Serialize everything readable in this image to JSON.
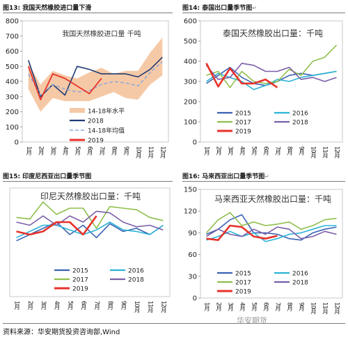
{
  "figures": [
    {
      "label": "图13:",
      "title": "我国天然橡胶进口量下滑"
    },
    {
      "label": "图14:",
      "title": "泰国出口量季节图"
    },
    {
      "label": "图15:",
      "title": "印度尼西亚出口量季节图"
    },
    {
      "label": "图16:",
      "title": "马来西亚出口量季节图"
    }
  ],
  "return_mark": "↵",
  "source": "资料来源：华安期货投资咨询部,Wind",
  "watermark": "华安期货",
  "colors": {
    "band": "#f6c9a6",
    "c2015": "#3a62b2",
    "c2016": "#2ab3d6",
    "c2017": "#8fbf4d",
    "c2018": "#7a5ea8",
    "c2019": "#e8322a",
    "c2018dark": "#1f3b73",
    "avg": "#8aa8d6"
  },
  "chart_data": [
    {
      "type": "line",
      "title": "我国天然橡胶进口量   千吨",
      "categories": [
        "1月",
        "2月",
        "3月",
        "4月",
        "5月",
        "6月",
        "7月",
        "8月",
        "9月",
        "10月",
        "11月",
        "12月"
      ],
      "ylim": [
        0,
        800
      ],
      "yticks": [
        0,
        100,
        200,
        300,
        400,
        500,
        600,
        700,
        800
      ],
      "band": {
        "name": "14-18年水平",
        "min": [
          350,
          200,
          290,
          270,
          270,
          270,
          300,
          330,
          290,
          280,
          380,
          440
        ],
        "max": [
          520,
          380,
          470,
          440,
          420,
          460,
          490,
          450,
          470,
          470,
          590,
          690
        ]
      },
      "series": [
        {
          "name": "2018",
          "values": [
            540,
            300,
            380,
            310,
            500,
            480,
            450,
            450,
            450,
            430,
            480,
            560
          ]
        },
        {
          "name": "14-18年均值",
          "values": [
            450,
            310,
            380,
            350,
            330,
            340,
            380,
            400,
            390,
            370,
            460,
            530
          ]
        },
        {
          "name": "2019",
          "values": [
            500,
            280,
            450,
            420,
            370,
            320,
            420,
            null,
            null,
            null,
            null,
            null
          ]
        }
      ],
      "legend_position": "bottom-center"
    },
    {
      "type": "line",
      "title": "泰国天然橡胶出口量：千吨",
      "categories": [
        "1月",
        "2月",
        "3月",
        "4月",
        "5月",
        "6月",
        "7月",
        "8月",
        "9月",
        "10月",
        "11月",
        "12月"
      ],
      "ylim": [
        0,
        600
      ],
      "yticks": [
        0,
        100,
        200,
        300,
        400,
        500,
        600
      ],
      "series": [
        {
          "name": "2015",
          "values": [
            290,
            330,
            370,
            320,
            290,
            280,
            300,
            330,
            340,
            330,
            340,
            350
          ]
        },
        {
          "name": "2016",
          "values": [
            300,
            340,
            320,
            300,
            260,
            280,
            310,
            300,
            320,
            330,
            340,
            350
          ]
        },
        {
          "name": "2017",
          "values": [
            330,
            350,
            270,
            350,
            300,
            290,
            300,
            360,
            330,
            400,
            420,
            480
          ]
        },
        {
          "name": "2018",
          "values": [
            380,
            310,
            320,
            390,
            380,
            350,
            350,
            370,
            310,
            320,
            300,
            320
          ]
        },
        {
          "name": "2019",
          "values": [
            390,
            275,
            365,
            290,
            290,
            310,
            270,
            null,
            null,
            null,
            null,
            null
          ]
        }
      ],
      "legend_position": "bottom"
    },
    {
      "type": "line",
      "title": "印尼天然橡胶出口量：千吨",
      "categories": [
        "1月",
        "2月",
        "3月",
        "4月",
        "5月",
        "6月",
        "7月",
        "8月",
        "9月",
        "10月",
        "11月",
        "12月"
      ],
      "ylim": [
        0,
        350
      ],
      "yticks": [],
      "series": [
        {
          "name": "2015",
          "values": [
            180,
            200,
            220,
            240,
            200,
            230,
            190,
            235,
            210,
            220,
            200,
            230
          ]
        },
        {
          "name": "2016",
          "values": [
            190,
            210,
            230,
            230,
            215,
            200,
            215,
            240,
            215,
            210,
            200,
            230
          ]
        },
        {
          "name": "2017",
          "values": [
            255,
            250,
            305,
            265,
            285,
            285,
            220,
            290,
            285,
            280,
            255,
            245
          ]
        },
        {
          "name": "2018",
          "values": [
            240,
            230,
            260,
            230,
            260,
            240,
            275,
            270,
            240,
            225,
            230,
            215
          ]
        },
        {
          "name": "2019",
          "values": [
            210,
            200,
            210,
            240,
            240,
            200,
            260,
            null,
            null,
            null,
            null,
            null
          ]
        }
      ],
      "legend_position": "bottom"
    },
    {
      "type": "line",
      "title": "马来西亚天然橡胶出口量：千吨",
      "categories": [
        "1月",
        "2月",
        "3月",
        "4月",
        "5月",
        "6月",
        "7月",
        "8月",
        "9月",
        "10月",
        "11月",
        "12月"
      ],
      "ylim": [
        0,
        150
      ],
      "yticks": [
        0,
        30,
        60,
        90,
        120,
        150
      ],
      "series": [
        {
          "name": "2015",
          "values": [
            88,
            95,
            108,
            115,
            90,
            90,
            88,
            82,
            80,
            90,
            95,
            98
          ]
        },
        {
          "name": "2016",
          "values": [
            80,
            85,
            92,
            85,
            90,
            78,
            82,
            88,
            90,
            95,
            100,
            100
          ]
        },
        {
          "name": "2017",
          "values": [
            90,
            108,
            118,
            100,
            105,
            100,
            102,
            105,
            95,
            100,
            108,
            110
          ]
        },
        {
          "name": "2018",
          "values": [
            85,
            95,
            88,
            85,
            95,
            88,
            98,
            95,
            82,
            85,
            92,
            88
          ]
        },
        {
          "name": "2019",
          "values": [
            82,
            80,
            100,
            98,
            85,
            82,
            86,
            null,
            null,
            null,
            null,
            null
          ]
        }
      ],
      "legend_position": "bottom"
    }
  ]
}
